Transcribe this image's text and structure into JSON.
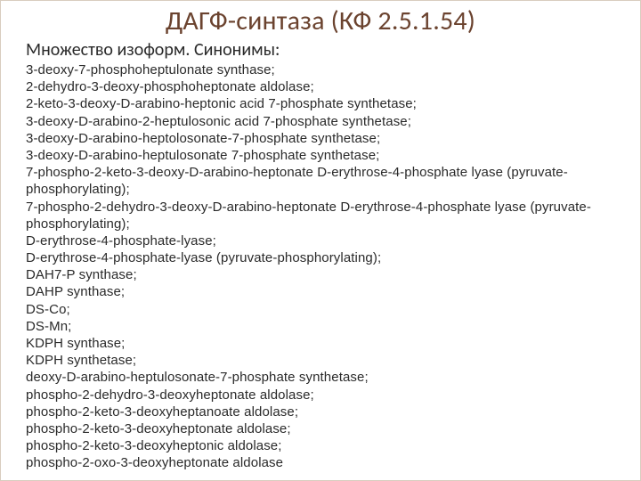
{
  "title": {
    "text": "ДАГФ-синтаза (КФ 2.5.1.54)",
    "color": "#6b432f",
    "fontsize": 30
  },
  "subtitle": {
    "text": "Множество изоформ. Синонимы:",
    "color": "#2a2a2a",
    "fontsize": 20
  },
  "body_color": "#2a2a2a",
  "body_fontsize": 15,
  "items": [
    "3-deoxy-7-phosphoheptulonate synthase;",
    "2-dehydro-3-deoxy-phosphoheptonate aldolase;",
    "2-keto-3-deoxy-D-arabino-heptonic acid 7-phosphate synthetase;",
    "3-deoxy-D-arabino-2-heptulosonic acid 7-phosphate synthetase;",
    "3-deoxy-D-arabino-heptolosonate-7-phosphate synthetase;",
    "3-deoxy-D-arabino-heptulosonate 7-phosphate synthetase;",
    "7-phospho-2-keto-3-deoxy-D-arabino-heptonate D-erythrose-4-phosphate lyase (pyruvate-phosphorylating);",
    "7-phospho-2-dehydro-3-deoxy-D-arabino-heptonate D-erythrose-4-phosphate lyase (pyruvate-phosphorylating);",
    "D-erythrose-4-phosphate-lyase;",
    "D-erythrose-4-phosphate-lyase (pyruvate-phosphorylating);",
    "DAH7-P synthase;",
    "DAHP synthase;",
    "DS-Co;",
    "DS-Mn;",
    "KDPH synthase;",
    "KDPH synthetase;",
    "deoxy-D-arabino-heptulosonate-7-phosphate synthetase;",
    "phospho-2-dehydro-3-deoxyheptonate aldolase;",
    "phospho-2-keto-3-deoxyheptanoate aldolase;",
    "phospho-2-keto-3-deoxyheptonate aldolase;",
    "phospho-2-keto-3-deoxyheptonic aldolase;",
    "phospho-2-oxo-3-deoxyheptonate aldolase"
  ]
}
